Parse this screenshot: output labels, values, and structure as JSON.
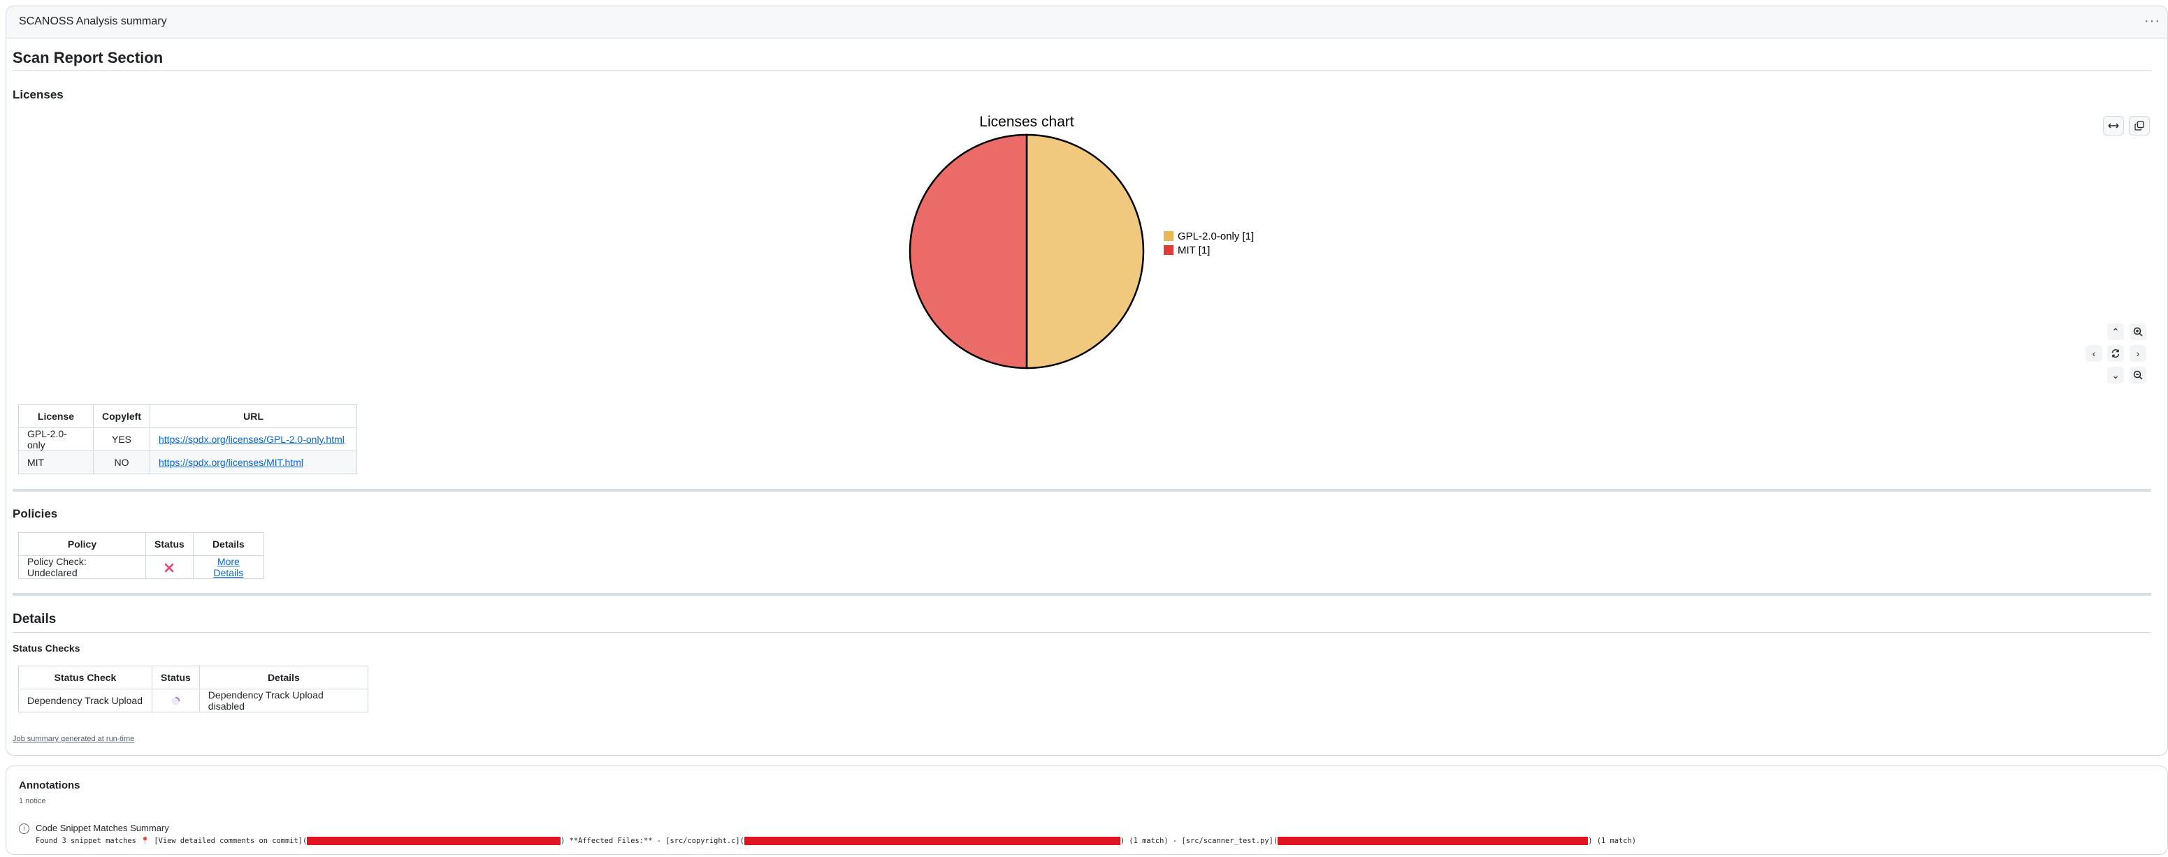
{
  "summary": {
    "title": "SCANOSS Analysis summary",
    "menu_icon": "kebab-horizontal-icon"
  },
  "report": {
    "heading": "Scan Report Section"
  },
  "licenses": {
    "heading": "Licenses",
    "table": {
      "headers": [
        "License",
        "Copyleft",
        "URL"
      ],
      "rows": [
        {
          "license": "GPL-2.0-only",
          "copyleft": "YES",
          "url": "https://spdx.org/licenses/GPL-2.0-only.html"
        },
        {
          "license": "MIT",
          "copyleft": "NO",
          "url": "https://spdx.org/licenses/MIT.html"
        }
      ]
    }
  },
  "chart_data": {
    "type": "pie",
    "title": "Licenses chart",
    "categories": [
      "GPL-2.0-only [1]",
      "MIT [1]"
    ],
    "values": [
      1,
      1
    ],
    "colors": [
      "#f0c97f",
      "#ea6b67"
    ],
    "legend_colors": [
      "#ebb656",
      "#e03d3a"
    ],
    "legend_position": "right"
  },
  "chart_controls": {
    "expand_icon": "arrows-horizontal-icon",
    "copy_icon": "copy-icon",
    "pan_up_icon": "chevron-up-icon",
    "pan_down_icon": "chevron-down-icon",
    "pan_left_icon": "chevron-left-icon",
    "pan_right_icon": "chevron-right-icon",
    "reset_icon": "sync-icon",
    "zoom_in_icon": "zoom-in-icon",
    "zoom_out_icon": "zoom-out-icon"
  },
  "policies": {
    "heading": "Policies",
    "table": {
      "headers": [
        "Policy",
        "Status",
        "Details"
      ],
      "rows": [
        {
          "policy": "Policy Check: Undeclared",
          "status_icon": "x-mark-icon",
          "details": "More Details"
        }
      ]
    }
  },
  "details": {
    "heading": "Details",
    "subheading": "Status Checks",
    "table": {
      "headers": [
        "Status Check",
        "Status",
        "Details"
      ],
      "rows": [
        {
          "check": "Dependency Track Upload",
          "status_icon": "loading-icon",
          "details": "Dependency Track Upload disabled"
        }
      ]
    }
  },
  "footer": {
    "note": "Job summary generated at run-time"
  },
  "annotations": {
    "title": "Annotations",
    "count": "1 notice",
    "item_icon": "info-icon",
    "item_title": "Code Snippet Matches Summary",
    "body_part1": "Found 3 snippet matches 📍 [View detailed comments on commit](",
    "body_part2": ") **Affected Files:** - [src/copyright.c](",
    "body_part3": ") (1 match) - [src/scanner_test.py](",
    "body_part4": ") (1 match)"
  }
}
